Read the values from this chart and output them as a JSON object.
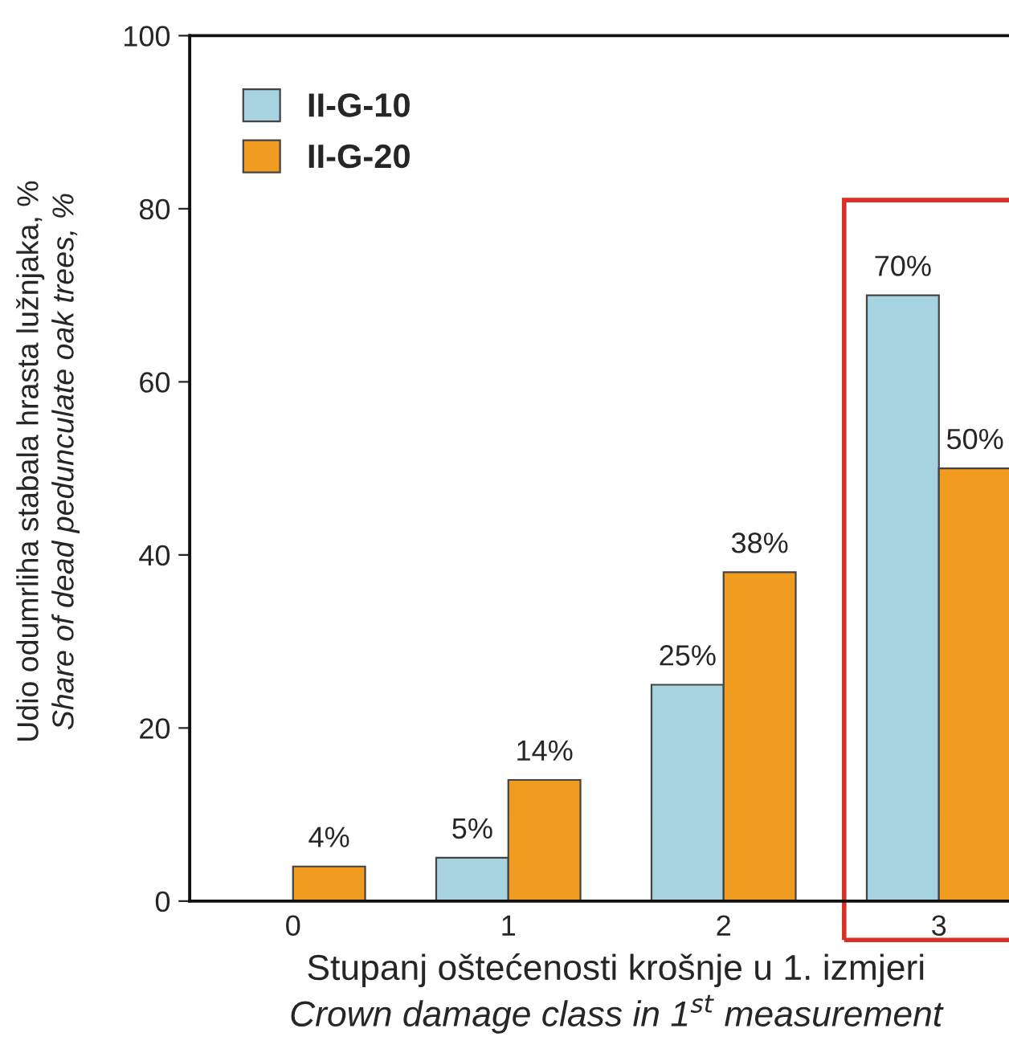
{
  "chart_data": {
    "type": "bar",
    "xlabel": "Stupanj oštećenosti krošnje u 1. izmjeri\nCrown damage class in 1$^{st}$ measurement",
    "ylabel": "Udio odumrliha stabala hrasta lužnjaka, %\nShare of dead pedunculate oak trees, %",
    "categories": [
      "0",
      "1",
      "2",
      "3"
    ],
    "series": [
      {
        "name": "II-G-10",
        "color": "#a6d3df",
        "values": [
          null,
          5,
          25,
          70
        ],
        "value_labels": [
          null,
          "5%",
          "25%",
          "70%"
        ]
      },
      {
        "name": "II-G-20",
        "color": "#f09c20",
        "values": [
          4,
          14,
          38,
          50
        ],
        "value_labels": [
          "4%",
          "14%",
          "38%",
          "50%"
        ]
      }
    ],
    "ylim": [
      0,
      100
    ],
    "yticks": [
      0,
      20,
      40,
      60,
      80,
      100
    ],
    "grid": false,
    "legend": "top left"
  }
}
